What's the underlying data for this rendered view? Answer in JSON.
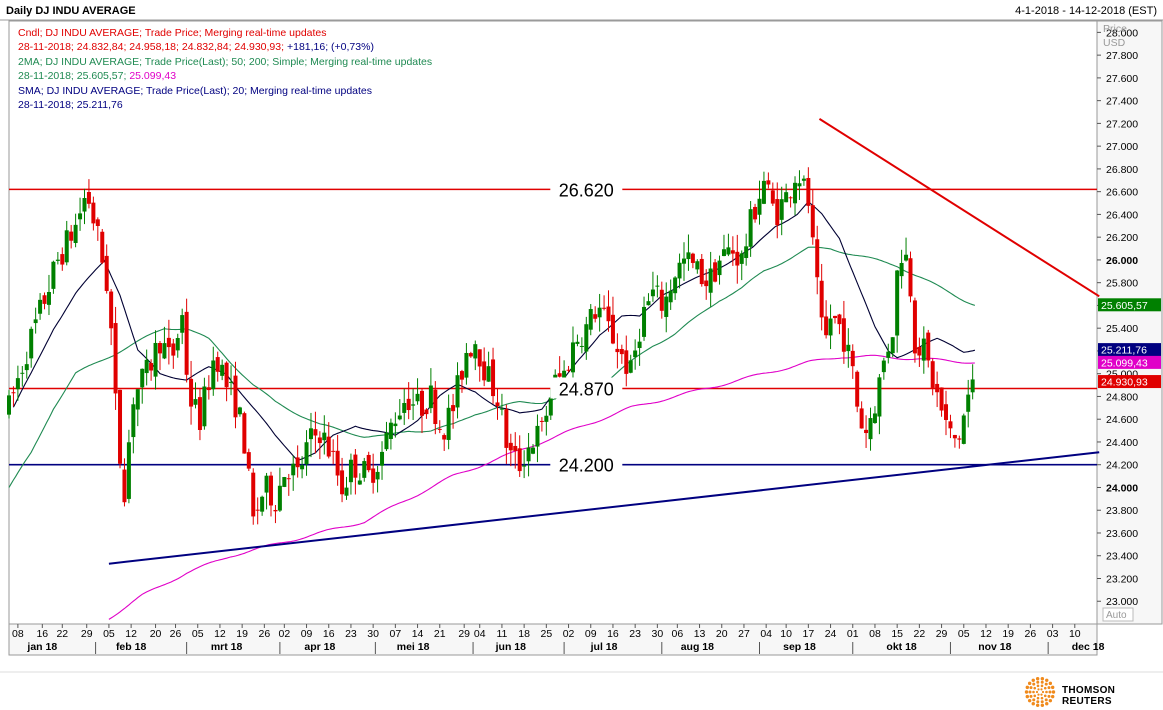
{
  "header": {
    "title": "Daily DJ INDU AVERAGE",
    "date_range": "4-1-2018 - 14-12-2018 (EST)"
  },
  "legend": {
    "candle_line": "Cndl; DJ INDU AVERAGE; Trade Price; Merging real-time updates",
    "candle_values_date": "28-11-2018; 24.832,84; 24.958,18; 24.832,84; 24.930,93;",
    "candle_values_change": "+181,16; (+0,73%)",
    "ma2_line": "2MA; DJ INDU AVERAGE; Trade Price(Last);  50; 200; Simple;  Merging real-time updates",
    "ma2_values_date_50": "28-11-2018; 25.605,57;",
    "ma2_values_200": "25.099,43",
    "sma_line": "SMA; DJ INDU AVERAGE; Trade Price(Last);  20;  Merging real-time updates",
    "sma_values": "28-11-2018; 25.211,76"
  },
  "axis": {
    "unit_top": "Price",
    "unit_bottom": "USD",
    "auto_label": "Auto"
  },
  "colors": {
    "candle_up": "#008000",
    "candle_down": "#e00000",
    "ma50": "#1f8a52",
    "ma200": "#e000c8",
    "sma20": "#000033",
    "resistance": "#e00000",
    "support": "#000080",
    "grid": "#ffffff",
    "axis_text": "#000000"
  },
  "brand": {
    "name": "THOMSON REUTERS",
    "logo_icon": "thomson-reuters-dots-logo"
  },
  "chart_data": {
    "type": "candlestick",
    "title": "Daily DJ INDU AVERAGE",
    "ylabel": "Price USD",
    "ylim": [
      22800,
      28100
    ],
    "y_ticks": [
      "23.000",
      "23.200",
      "23.400",
      "23.600",
      "23.800",
      "24.000",
      "24.200",
      "24.400",
      "24.600",
      "24.800",
      "25.000",
      "25.200",
      "25.400",
      "25.600",
      "25.800",
      "26.000",
      "26.200",
      "26.400",
      "26.600",
      "26.800",
      "27.000",
      "27.200",
      "27.400",
      "27.600",
      "27.800",
      "28.000"
    ],
    "y_ticks_bold": [
      "24.000",
      "26.000"
    ],
    "y_tick_values": [
      23000,
      23200,
      23400,
      23600,
      23800,
      24000,
      24200,
      24400,
      24600,
      24800,
      25000,
      25200,
      25400,
      25600,
      25800,
      26000,
      26200,
      26400,
      26600,
      26800,
      27000,
      27200,
      27400,
      27600,
      27800,
      28000
    ],
    "x_day_ticks": [
      "08",
      "16",
      "22",
      "29",
      "05",
      "12",
      "20",
      "26",
      "05",
      "12",
      "19",
      "26",
      "02",
      "09",
      "16",
      "23",
      "30",
      "07",
      "14",
      "21",
      "29",
      "04",
      "11",
      "18",
      "25",
      "02",
      "09",
      "16",
      "23",
      "30",
      "06",
      "13",
      "20",
      "27",
      "04",
      "10",
      "17",
      "24",
      "01",
      "08",
      "15",
      "22",
      "29",
      "05",
      "12",
      "19",
      "26",
      "03",
      "10"
    ],
    "x_day_tick_weeks": [
      0.4,
      1.5,
      2.4,
      3.5,
      4.5,
      5.5,
      6.6,
      7.5,
      8.5,
      9.5,
      10.5,
      11.5,
      12.4,
      13.4,
      14.4,
      15.4,
      16.4,
      17.4,
      18.4,
      19.4,
      20.5,
      21.2,
      22.2,
      23.2,
      24.2,
      25.2,
      26.2,
      27.2,
      28.2,
      29.2,
      30.1,
      31.1,
      32.1,
      33.1,
      34.1,
      35.0,
      36.0,
      37.0,
      38.0,
      39.0,
      40.0,
      41.0,
      42.0,
      43.0,
      44.0,
      45.0,
      46.0,
      47.0,
      48.0
    ],
    "x_month_labels": [
      "jan 18",
      "feb 18",
      "mrt 18",
      "apr 18",
      "mei 18",
      "jun 18",
      "jul 18",
      "aug 18",
      "sep 18",
      "okt 18",
      "nov 18",
      "dec 18"
    ],
    "x_month_weeks": [
      1.5,
      5.5,
      9.8,
      14.0,
      18.2,
      22.6,
      26.8,
      31.0,
      35.6,
      40.2,
      44.4,
      48.6
    ],
    "x_month_sep_weeks": [
      3.9,
      8.0,
      12.2,
      16.5,
      20.9,
      25.0,
      29.4,
      33.8,
      38.0,
      42.4,
      46.8
    ],
    "x_week_range": [
      0,
      49
    ],
    "annotated_levels": [
      {
        "label": "26.620",
        "value": 26620,
        "color": "#e00000"
      },
      {
        "label": "24.870",
        "value": 24870,
        "color": "#e00000"
      },
      {
        "label": "24.200",
        "value": 24200,
        "color": "#000080"
      }
    ],
    "trendlines": [
      {
        "name": "",
        "color": "#e00000",
        "points": [
          [
            36.5,
            27240
          ],
          [
            49.1,
            25680
          ]
        ]
      },
      {
        "name": "",
        "color": "#000080",
        "points": [
          [
            4.5,
            23330
          ],
          [
            49.1,
            24310
          ]
        ]
      }
    ],
    "last_value_tags": [
      {
        "label": "25.605,57",
        "value": 25605.57,
        "color": "#008000"
      },
      {
        "label": "25.211,76",
        "value": 25211.76,
        "color": "#000080"
      },
      {
        "label": "25.099,43",
        "value": 25099.43,
        "color": "#e000c8"
      },
      {
        "label": "24.930,93",
        "value": 24930.93,
        "color": "#e00000"
      }
    ],
    "close_anchors": [
      [
        0.0,
        24700
      ],
      [
        0.8,
        25200
      ],
      [
        1.5,
        25600
      ],
      [
        2.2,
        26000
      ],
      [
        3.0,
        26300
      ],
      [
        3.5,
        26600
      ],
      [
        4.0,
        26200
      ],
      [
        4.5,
        25700
      ],
      [
        4.9,
        24400
      ],
      [
        5.2,
        24000
      ],
      [
        5.6,
        24800
      ],
      [
        6.2,
        25000
      ],
      [
        6.8,
        25300
      ],
      [
        7.3,
        25100
      ],
      [
        7.8,
        25500
      ],
      [
        8.1,
        24800
      ],
      [
        8.6,
        24600
      ],
      [
        9.3,
        25200
      ],
      [
        9.8,
        24900
      ],
      [
        10.3,
        24700
      ],
      [
        10.6,
        24400
      ],
      [
        11.0,
        23700
      ],
      [
        11.5,
        24000
      ],
      [
        12.0,
        23900
      ],
      [
        12.5,
        24200
      ],
      [
        13.0,
        24100
      ],
      [
        13.5,
        24400
      ],
      [
        14.0,
        24500
      ],
      [
        14.5,
        24300
      ],
      [
        15.0,
        24000
      ],
      [
        15.5,
        24200
      ],
      [
        16.2,
        24100
      ],
      [
        16.8,
        24300
      ],
      [
        17.3,
        24600
      ],
      [
        17.9,
        24800
      ],
      [
        18.5,
        24700
      ],
      [
        19.0,
        24800
      ],
      [
        19.5,
        24500
      ],
      [
        20.0,
        24700
      ],
      [
        20.6,
        25200
      ],
      [
        21.0,
        25300
      ],
      [
        21.5,
        25000
      ],
      [
        22.0,
        24800
      ],
      [
        22.5,
        24300
      ],
      [
        23.0,
        24200
      ],
      [
        23.5,
        24400
      ],
      [
        24.0,
        24500
      ],
      [
        24.5,
        24900
      ],
      [
        25.0,
        25000
      ],
      [
        25.5,
        25300
      ],
      [
        26.0,
        25400
      ],
      [
        26.5,
        25600
      ],
      [
        27.0,
        25400
      ],
      [
        27.5,
        25200
      ],
      [
        28.0,
        25000
      ],
      [
        28.5,
        25500
      ],
      [
        29.0,
        25700
      ],
      [
        29.5,
        25600
      ],
      [
        30.0,
        25900
      ],
      [
        30.5,
        26000
      ],
      [
        31.0,
        25900
      ],
      [
        31.5,
        25800
      ],
      [
        32.0,
        26000
      ],
      [
        32.5,
        26100
      ],
      [
        33.0,
        26000
      ],
      [
        33.5,
        26400
      ],
      [
        34.0,
        26700
      ],
      [
        34.5,
        26400
      ],
      [
        35.0,
        26550
      ],
      [
        35.5,
        26800
      ],
      [
        36.0,
        26500
      ],
      [
        36.3,
        25900
      ],
      [
        36.7,
        25200
      ],
      [
        37.0,
        25500
      ],
      [
        37.5,
        25400
      ],
      [
        38.0,
        25000
      ],
      [
        38.3,
        24600
      ],
      [
        38.6,
        24500
      ],
      [
        39.0,
        24750
      ],
      [
        39.4,
        25100
      ],
      [
        39.8,
        25400
      ],
      [
        40.1,
        26100
      ],
      [
        40.5,
        26000
      ],
      [
        40.8,
        25300
      ],
      [
        41.2,
        25200
      ],
      [
        41.5,
        25000
      ],
      [
        41.8,
        24800
      ],
      [
        42.1,
        24600
      ],
      [
        42.5,
        24400
      ],
      [
        42.8,
        24450
      ],
      [
        43.2,
        24800
      ],
      [
        43.5,
        24930
      ]
    ],
    "sma20_anchors": [
      [
        0.2,
        24700
      ],
      [
        1.0,
        25000
      ],
      [
        2.0,
        25400
      ],
      [
        3.0,
        25700
      ],
      [
        4.3,
        26000
      ],
      [
        5.0,
        25700
      ],
      [
        5.8,
        25200
      ],
      [
        6.8,
        25000
      ],
      [
        8.0,
        24950
      ],
      [
        9.0,
        25050
      ],
      [
        9.8,
        25000
      ],
      [
        11.0,
        24700
      ],
      [
        12.0,
        24450
      ],
      [
        13.0,
        24250
      ],
      [
        13.8,
        24300
      ],
      [
        14.6,
        24450
      ],
      [
        15.6,
        24550
      ],
      [
        16.4,
        24500
      ],
      [
        17.4,
        24450
      ],
      [
        18.4,
        24600
      ],
      [
        19.4,
        24800
      ],
      [
        20.2,
        24900
      ],
      [
        21.0,
        24850
      ],
      [
        22.0,
        24700
      ],
      [
        23.0,
        24650
      ],
      [
        24.0,
        24700
      ],
      [
        24.8,
        24900
      ],
      [
        25.6,
        25100
      ],
      [
        26.6,
        25350
      ],
      [
        27.6,
        25500
      ],
      [
        28.4,
        25500
      ],
      [
        29.4,
        25700
      ],
      [
        30.6,
        25800
      ],
      [
        31.6,
        25900
      ],
      [
        32.6,
        26000
      ],
      [
        33.5,
        26100
      ],
      [
        34.5,
        26300
      ],
      [
        35.5,
        26400
      ],
      [
        36.0,
        26500
      ],
      [
        36.6,
        26400
      ],
      [
        37.4,
        26200
      ],
      [
        38.2,
        25800
      ],
      [
        39.0,
        25400
      ],
      [
        39.6,
        25200
      ],
      [
        40.0,
        25150
      ],
      [
        40.6,
        25200
      ],
      [
        41.2,
        25250
      ],
      [
        41.8,
        25300
      ],
      [
        42.5,
        25250
      ],
      [
        43.0,
        25200
      ],
      [
        43.5,
        25211.76
      ]
    ],
    "ma50_anchors": [
      [
        0.0,
        24000
      ],
      [
        1.0,
        24300
      ],
      [
        2.0,
        24700
      ],
      [
        3.0,
        25000
      ],
      [
        4.0,
        25100
      ],
      [
        5.0,
        25200
      ],
      [
        6.0,
        25300
      ],
      [
        7.0,
        25400
      ],
      [
        8.0,
        25400
      ],
      [
        9.0,
        25300
      ],
      [
        10.0,
        25100
      ],
      [
        11.0,
        24900
      ],
      [
        12.0,
        24750
      ],
      [
        13.0,
        24650
      ],
      [
        14.0,
        24550
      ],
      [
        15.0,
        24500
      ],
      [
        16.0,
        24450
      ],
      [
        17.0,
        24450
      ],
      [
        18.0,
        24500
      ],
      [
        19.0,
        24500
      ],
      [
        20.0,
        24550
      ],
      [
        21.0,
        24650
      ],
      [
        22.0,
        24700
      ],
      [
        23.0,
        24750
      ],
      [
        24.0,
        24750
      ],
      [
        25.0,
        24800
      ],
      [
        26.0,
        24850
      ],
      [
        27.0,
        24950
      ],
      [
        28.0,
        25100
      ],
      [
        29.0,
        25250
      ],
      [
        30.0,
        25350
      ],
      [
        31.0,
        25500
      ],
      [
        32.0,
        25650
      ],
      [
        33.0,
        25750
      ],
      [
        34.0,
        25900
      ],
      [
        35.0,
        26000
      ],
      [
        36.0,
        26100
      ],
      [
        37.0,
        26100
      ],
      [
        38.0,
        26050
      ],
      [
        39.0,
        26000
      ],
      [
        40.0,
        25950
      ],
      [
        41.0,
        25850
      ],
      [
        42.0,
        25750
      ],
      [
        43.0,
        25650
      ],
      [
        43.5,
        25605.57
      ]
    ],
    "ma200_anchors": [
      [
        4.5,
        22850
      ],
      [
        6.0,
        23050
      ],
      [
        8.0,
        23250
      ],
      [
        10.0,
        23400
      ],
      [
        12.0,
        23500
      ],
      [
        14.0,
        23600
      ],
      [
        16.0,
        23700
      ],
      [
        18.0,
        23900
      ],
      [
        20.0,
        24100
      ],
      [
        22.0,
        24250
      ],
      [
        24.0,
        24400
      ],
      [
        26.0,
        24550
      ],
      [
        28.0,
        24700
      ],
      [
        30.0,
        24800
      ],
      [
        32.0,
        24900
      ],
      [
        34.0,
        25000
      ],
      [
        36.0,
        25100
      ],
      [
        37.5,
        25150
      ],
      [
        39.0,
        25150
      ],
      [
        41.0,
        25130
      ],
      [
        43.5,
        25099.43
      ]
    ]
  }
}
